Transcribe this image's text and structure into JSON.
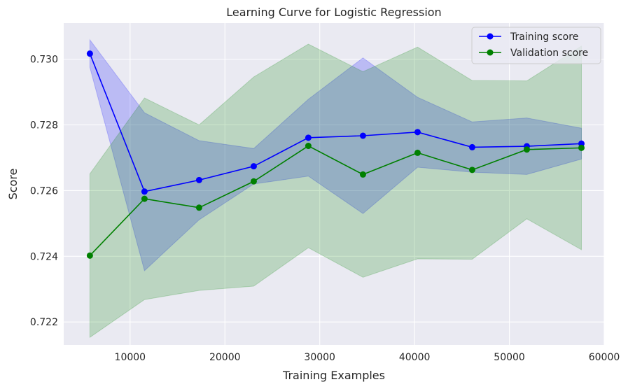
{
  "chart_data": {
    "type": "line",
    "title": "Learning Curve for Logistic Regression",
    "xlabel": "Training Examples",
    "ylabel": "Score",
    "xlim": [
      3000,
      60000
    ],
    "ylim": [
      0.7213,
      0.7311
    ],
    "xticks": [
      10000,
      20000,
      30000,
      40000,
      50000,
      60000
    ],
    "yticks": [
      0.722,
      0.724,
      0.726,
      0.728,
      0.73
    ],
    "xtick_labels": [
      "10000",
      "20000",
      "30000",
      "40000",
      "50000",
      "60000"
    ],
    "ytick_labels": [
      "0.722",
      "0.724",
      "0.726",
      "0.728",
      "0.730"
    ],
    "grid": true,
    "legend_position": "top-right",
    "x": [
      5760,
      11520,
      17280,
      23040,
      28800,
      34560,
      40320,
      46080,
      51840,
      57600
    ],
    "series": [
      {
        "name": "Training score",
        "color": "#0000ff",
        "values": [
          0.73017,
          0.72597,
          0.72632,
          0.72674,
          0.72761,
          0.72767,
          0.72778,
          0.72732,
          0.72735,
          0.72743
        ],
        "band_upper": [
          0.73059,
          0.72837,
          0.72752,
          0.72728,
          0.72878,
          0.73004,
          0.72884,
          0.72809,
          0.72821,
          0.7279
        ],
        "band_lower": [
          0.72975,
          0.72356,
          0.72511,
          0.7262,
          0.72644,
          0.7253,
          0.72671,
          0.72656,
          0.72649,
          0.72696
        ],
        "band_color": "#0000ff"
      },
      {
        "name": "Validation score",
        "color": "#008000",
        "values": [
          0.72402,
          0.72575,
          0.72548,
          0.72628,
          0.72736,
          0.72649,
          0.72715,
          0.72663,
          0.72725,
          0.7273
        ],
        "band_upper": [
          0.72651,
          0.72882,
          0.728,
          0.72946,
          0.73046,
          0.72962,
          0.73037,
          0.72935,
          0.72934,
          0.7304
        ],
        "band_lower": [
          0.72153,
          0.72268,
          0.72296,
          0.72309,
          0.72426,
          0.72336,
          0.72392,
          0.72391,
          0.72514,
          0.7242
        ],
        "band_color": "#008000"
      }
    ]
  },
  "colors": {
    "plot_background": "#eaeaf2",
    "grid": "#ffffff",
    "text": "#262626"
  }
}
